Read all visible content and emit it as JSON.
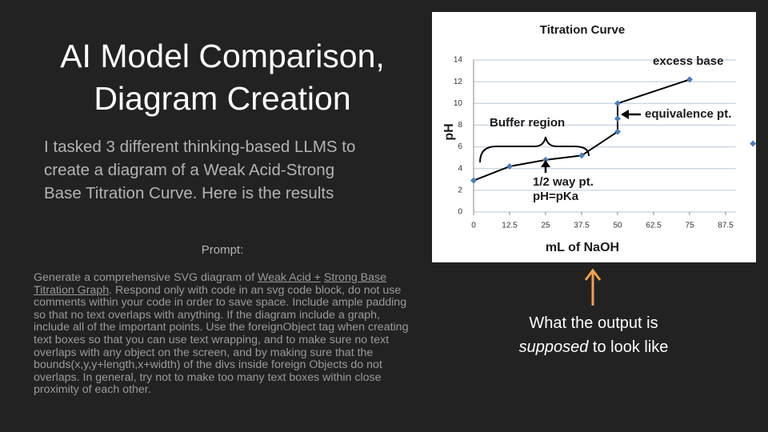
{
  "slide": {
    "title_lines": [
      "AI Model Comparison,",
      "Diagram Creation"
    ],
    "subtitle_lines": [
      "I tasked 3 different thinking-based LLMS to",
      "create a diagram of a Weak Acid-Strong",
      "Base Titration Curve. Here is the results"
    ],
    "prompt_label": "Prompt:",
    "prompt": {
      "text_start": "Generate a comprehensive SVG diagram of",
      "link_1": "Weak Acid +",
      "link_2": "Strong Base Titration Graph",
      "text_end": ". Respond only with code in an svg code block, do not use comments within your code in order to save space. Include ample padding so that no text overlaps with anything. If the diagram include a graph, include all of the important points. Use the foreignObject tag when creating text boxes so that you can use text wrapping, and to make sure no text overlaps with any object on the screen, and by making sure that the bounds(x,y,y+length,x+width) of the divs inside foreign Objects do not overlaps. In general, try not to make too many text boxes within close proximity of each other."
    },
    "caption": {
      "line_1": "What the output is",
      "emphasis": "supposed",
      "line_2_rest": "to look like"
    }
  },
  "chart_data": {
    "type": "line",
    "title": "Titration Curve",
    "x_label": "mL of NaOH",
    "y_label": "pH",
    "x": [
      0,
      12.5,
      25,
      37.5,
      50,
      50,
      50,
      75,
      97
    ],
    "series": [
      {
        "name": "pH",
        "color": "#4a7ebb",
        "values": [
          2.9,
          4.2,
          4.8,
          5.2,
          7.4,
          8.6,
          10,
          12.2,
          6.3
        ]
      }
    ],
    "xlim": [
      0,
      91
    ],
    "xticks": [
      0,
      12.5,
      25,
      37.5,
      50,
      62.5,
      75,
      87.5
    ],
    "ylim": [
      0,
      14
    ],
    "yticks": [
      0,
      2,
      4,
      6,
      8,
      10,
      12,
      14
    ],
    "grid": true,
    "annotations": [
      "excess base",
      "equivalence pt.",
      "Buffer region",
      "1/2 way pt.",
      "pH=pKa"
    ]
  }
}
